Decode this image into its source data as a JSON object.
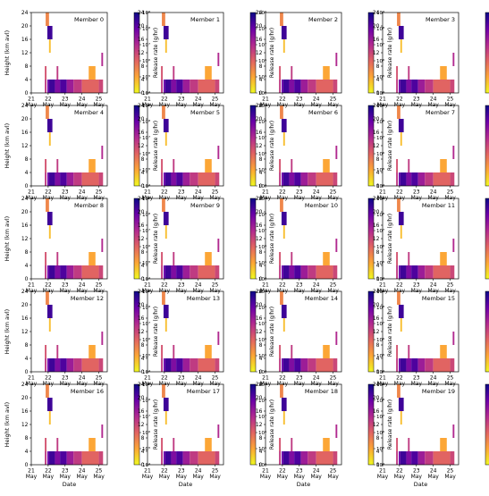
{
  "figure": {
    "ylabel": "Height (km avl)",
    "xlabel": "Date",
    "colorbar_label": "Release rate (g/hr)",
    "colorbar_ticks": [
      "10⁴",
      "10⁵",
      "10⁶",
      "10⁷",
      "10⁸",
      "10⁹"
    ],
    "x_ticks": [
      {
        "day": "21",
        "month": "May"
      },
      {
        "day": "22",
        "month": "May"
      },
      {
        "day": "23",
        "month": "May"
      },
      {
        "day": "24",
        "month": "May"
      },
      {
        "day": "25",
        "month": "May"
      }
    ],
    "y_ticks": [
      "0",
      "4",
      "8",
      "12",
      "16",
      "20",
      "24"
    ],
    "colormap": [
      "#f0f921",
      "#fca636",
      "#e16462",
      "#b12a90",
      "#6a00a8",
      "#0d0887"
    ]
  },
  "chart_data": {
    "type": "heatmap",
    "x_unit": "date (May 2011)",
    "y_unit": "km avl",
    "ylim": [
      0,
      24
    ],
    "color_scale": "log",
    "color_range": [
      10000,
      1000000000
    ],
    "panels": [
      {
        "title": "Member 0"
      },
      {
        "title": "Member 1"
      },
      {
        "title": "Member 2"
      },
      {
        "title": "Member 3"
      },
      {
        "title": "Member 4"
      },
      {
        "title": "Member 5"
      },
      {
        "title": "Member 6"
      },
      {
        "title": "Member 7"
      },
      {
        "title": "Member 8"
      },
      {
        "title": "Member 9"
      },
      {
        "title": "Member 10"
      },
      {
        "title": "Member 11"
      },
      {
        "title": "Member 12"
      },
      {
        "title": "Member 13"
      },
      {
        "title": "Member 14"
      },
      {
        "title": "Member 15"
      },
      {
        "title": "Member 16"
      },
      {
        "title": "Member 17"
      },
      {
        "title": "Member 18"
      },
      {
        "title": "Member 19"
      }
    ],
    "common_cells": [
      {
        "x0": 21.85,
        "x1": 22.05,
        "y0": 20,
        "y1": 24,
        "rate": 300000
      },
      {
        "x0": 21.95,
        "x1": 22.25,
        "y0": 16,
        "y1": 20,
        "rate": 300000000
      },
      {
        "x0": 22.05,
        "x1": 22.15,
        "y0": 12,
        "y1": 16,
        "rate": 50000
      },
      {
        "x0": 21.8,
        "x1": 21.9,
        "y0": 4,
        "y1": 8,
        "rate": 2000000
      },
      {
        "x0": 22.5,
        "x1": 22.6,
        "y0": 4,
        "y1": 8,
        "rate": 5000000
      },
      {
        "x0": 24.4,
        "x1": 24.8,
        "y0": 4,
        "y1": 8,
        "rate": 100000
      },
      {
        "x0": 25.15,
        "x1": 25.25,
        "y0": 8,
        "y1": 12,
        "rate": 10000000
      }
    ],
    "bottom_row": [
      {
        "x0": 21.8,
        "x1": 21.9,
        "rate": 5000000
      },
      {
        "x0": 21.95,
        "x1": 22.05,
        "rate": 100000000
      },
      {
        "x0": 22.05,
        "x1": 22.4,
        "rate": 300000000
      },
      {
        "x0": 22.4,
        "x1": 22.7,
        "rate": 50000000
      },
      {
        "x0": 22.7,
        "x1": 23.1,
        "rate": 200000000
      },
      {
        "x0": 23.1,
        "x1": 23.5,
        "rate": 20000000
      },
      {
        "x0": 23.5,
        "x1": 24.0,
        "rate": 5000000
      },
      {
        "x0": 24.0,
        "x1": 25.0,
        "rate": 1000000
      },
      {
        "x0": 25.0,
        "x1": 25.25,
        "rate": 3000000
      }
    ]
  }
}
